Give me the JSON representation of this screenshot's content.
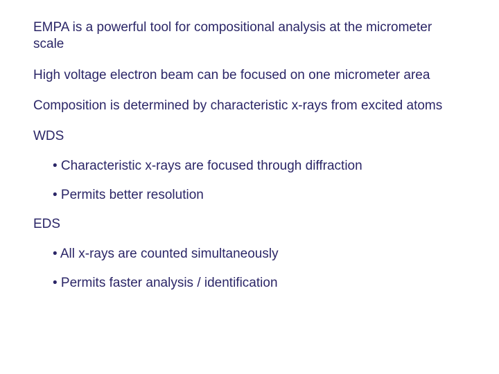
{
  "text_color": "#2b2667",
  "background_color": "#ffffff",
  "font_family": "Arial, Helvetica, sans-serif",
  "font_size_pt": 14,
  "paragraphs": [
    "EMPA is a powerful tool for compositional analysis at the micrometer scale",
    "High voltage electron beam can be focused on one micrometer area",
    "Composition is determined by characteristic x-rays from excited atoms"
  ],
  "sections": [
    {
      "heading": "WDS",
      "items": [
        "Characteristic x-rays are focused through diffraction",
        "Permits better resolution"
      ]
    },
    {
      "heading": "EDS",
      "items": [
        "All x-rays are counted simultaneously",
        "Permits faster analysis / identification"
      ]
    }
  ],
  "bullet_glyph": "•"
}
